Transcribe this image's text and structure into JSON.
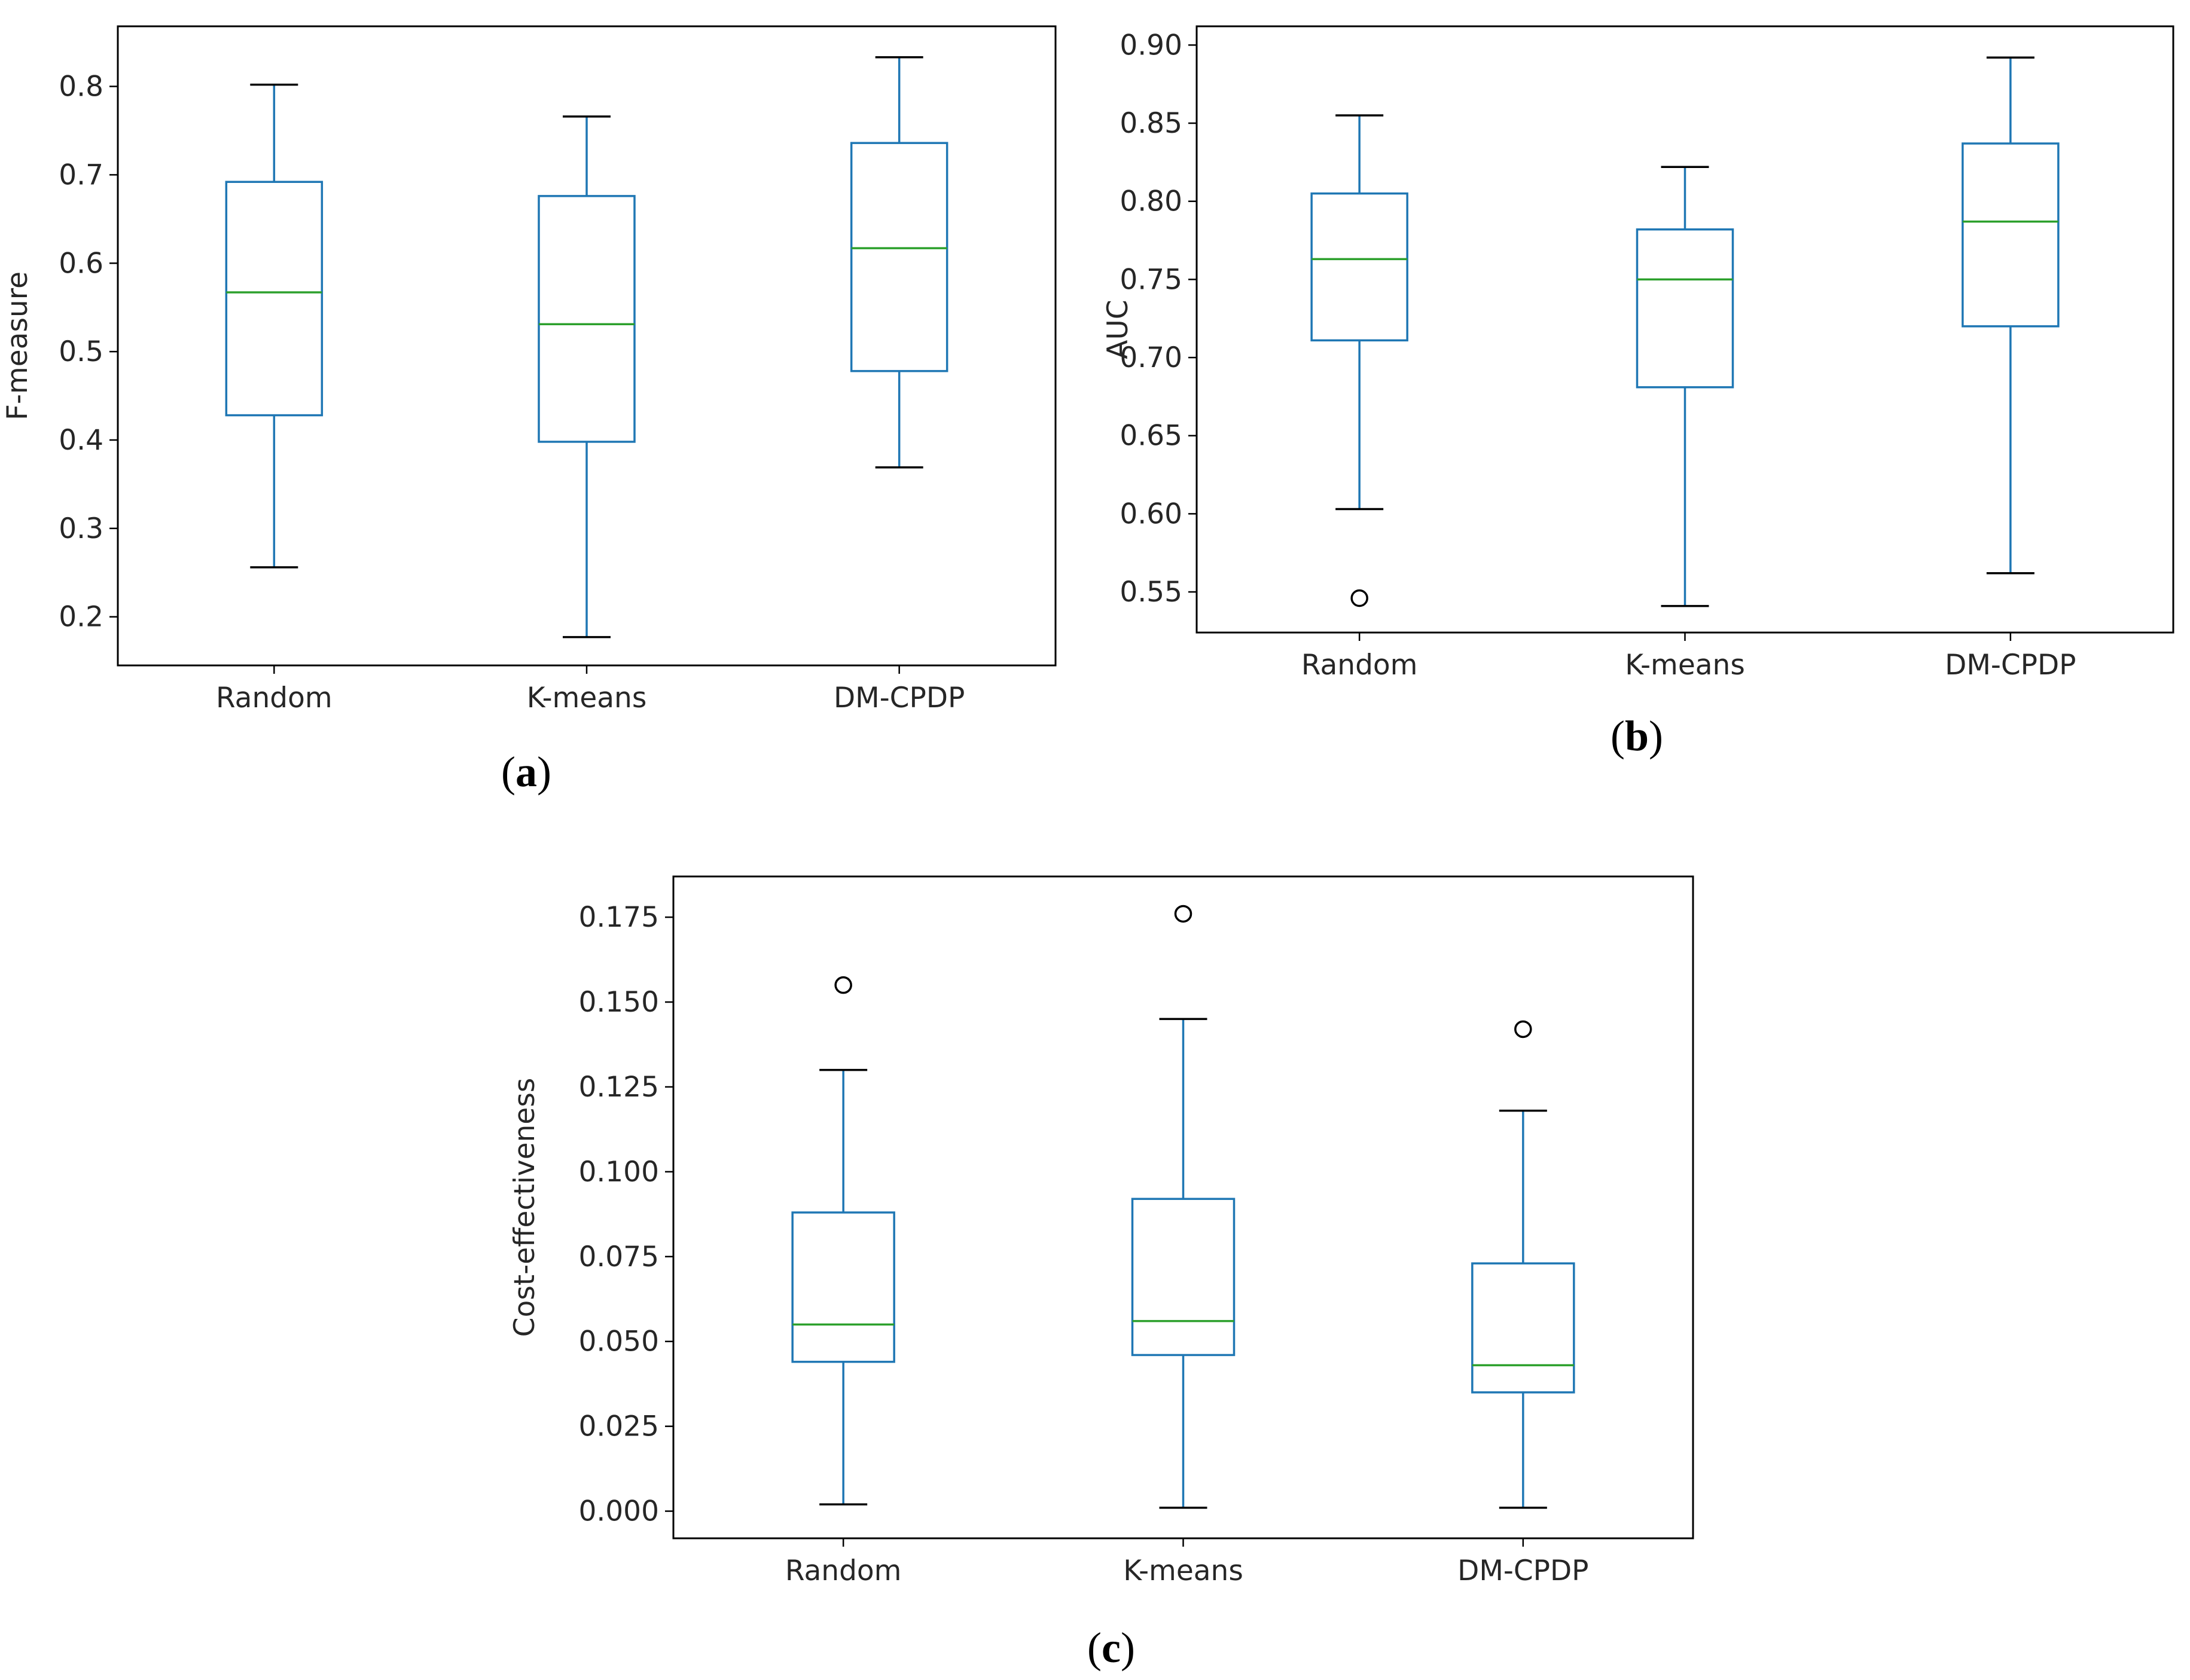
{
  "colors": {
    "box": "#1f77b4",
    "median": "#2ca02c",
    "whisker_cap": "#000000",
    "frame": "#000000",
    "text": "#262626"
  },
  "chart_data": [
    {
      "panel": "a",
      "type": "box",
      "caption_open": "(",
      "caption_letter": "a",
      "caption_close": ")",
      "ylabel": "F-measure",
      "xlabel": "",
      "ylim": [
        0.145,
        0.868
      ],
      "yticks": [
        0.2,
        0.3,
        0.4,
        0.5,
        0.6,
        0.7,
        0.8
      ],
      "ytick_labels": [
        "0.2",
        "0.3",
        "0.4",
        "0.5",
        "0.6",
        "0.7",
        "0.8"
      ],
      "categories": [
        "Random",
        "K-means",
        "DM-CPDP"
      ],
      "boxes": [
        {
          "name": "Random",
          "whisker_low": 0.256,
          "q1": 0.428,
          "median": 0.567,
          "q3": 0.692,
          "whisker_high": 0.802,
          "outliers": []
        },
        {
          "name": "K-means",
          "whisker_low": 0.177,
          "q1": 0.398,
          "median": 0.531,
          "q3": 0.676,
          "whisker_high": 0.766,
          "outliers": []
        },
        {
          "name": "DM-CPDP",
          "whisker_low": 0.369,
          "q1": 0.478,
          "median": 0.617,
          "q3": 0.736,
          "whisker_high": 0.833,
          "outliers": []
        }
      ]
    },
    {
      "panel": "b",
      "type": "box",
      "caption_open": "(",
      "caption_letter": "b",
      "caption_close": ")",
      "ylabel": "AUC",
      "xlabel": "",
      "ylim": [
        0.524,
        0.912
      ],
      "yticks": [
        0.55,
        0.6,
        0.65,
        0.7,
        0.75,
        0.8,
        0.85,
        0.9
      ],
      "ytick_labels": [
        "0.55",
        "0.60",
        "0.65",
        "0.70",
        "0.75",
        "0.80",
        "0.85",
        "0.90"
      ],
      "categories": [
        "Random",
        "K-means",
        "DM-CPDP"
      ],
      "boxes": [
        {
          "name": "Random",
          "whisker_low": 0.603,
          "q1": 0.711,
          "median": 0.763,
          "q3": 0.805,
          "whisker_high": 0.855,
          "outliers": [
            0.546
          ]
        },
        {
          "name": "K-means",
          "whisker_low": 0.541,
          "q1": 0.681,
          "median": 0.75,
          "q3": 0.782,
          "whisker_high": 0.822,
          "outliers": []
        },
        {
          "name": "DM-CPDP",
          "whisker_low": 0.562,
          "q1": 0.72,
          "median": 0.787,
          "q3": 0.837,
          "whisker_high": 0.892,
          "outliers": []
        }
      ]
    },
    {
      "panel": "c",
      "type": "box",
      "caption_open": "(",
      "caption_letter": "c",
      "caption_close": ")",
      "ylabel": "Cost-effectiveness",
      "xlabel": "",
      "ylim": [
        -0.008,
        0.187
      ],
      "yticks": [
        0.0,
        0.025,
        0.05,
        0.075,
        0.1,
        0.125,
        0.15,
        0.175
      ],
      "ytick_labels": [
        "0.000",
        "0.025",
        "0.050",
        "0.075",
        "0.100",
        "0.125",
        "0.150",
        "0.175"
      ],
      "categories": [
        "Random",
        "K-means",
        "DM-CPDP"
      ],
      "boxes": [
        {
          "name": "Random",
          "whisker_low": 0.002,
          "q1": 0.044,
          "median": 0.055,
          "q3": 0.088,
          "whisker_high": 0.13,
          "outliers": [
            0.155
          ]
        },
        {
          "name": "K-means",
          "whisker_low": 0.001,
          "q1": 0.046,
          "median": 0.056,
          "q3": 0.092,
          "whisker_high": 0.145,
          "outliers": [
            0.176
          ]
        },
        {
          "name": "DM-CPDP",
          "whisker_low": 0.001,
          "q1": 0.035,
          "median": 0.043,
          "q3": 0.073,
          "whisker_high": 0.118,
          "outliers": [
            0.142
          ]
        }
      ]
    }
  ]
}
